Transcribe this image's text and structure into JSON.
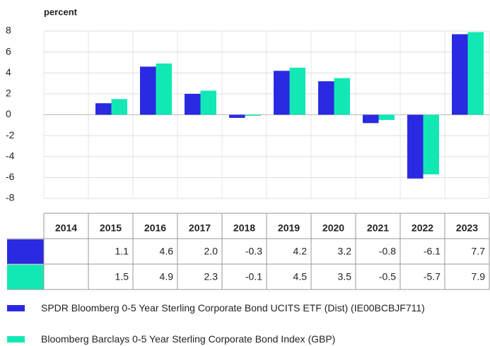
{
  "chart_data": {
    "type": "bar",
    "y_axis_label": "percent",
    "categories": [
      "2014",
      "2015",
      "2016",
      "2017",
      "2018",
      "2019",
      "2020",
      "2021",
      "2022",
      "2023"
    ],
    "series": [
      {
        "name": "SPDR Bloomberg 0-5 Year Sterling Corporate Bond UCITS ETF (Dist) (IE00BCBJF711)",
        "color": "#2a2ae2",
        "values": [
          null,
          1.1,
          4.6,
          2.0,
          -0.3,
          4.2,
          3.2,
          -0.8,
          -6.1,
          7.7
        ],
        "value_labels": [
          null,
          "1.1",
          "4.6",
          "2.0",
          "-0.3",
          "4.2",
          "3.2",
          "-0.8",
          "-6.1",
          "7.7"
        ]
      },
      {
        "name": "Bloomberg Barclays 0-5 Year Sterling Corporate Bond Index (GBP)",
        "color": "#12e8b4",
        "values": [
          null,
          1.5,
          4.9,
          2.3,
          -0.1,
          4.5,
          3.5,
          -0.5,
          -5.7,
          7.9
        ],
        "value_labels": [
          null,
          "1.5",
          "4.9",
          "2.3",
          "-0.1",
          "4.5",
          "3.5",
          "-0.5",
          "-5.7",
          "7.9"
        ]
      }
    ],
    "ylim": [
      -8,
      8
    ],
    "yticks": [
      8,
      6,
      4,
      2,
      0,
      -2,
      -4,
      -6,
      -8
    ],
    "grid": true
  }
}
